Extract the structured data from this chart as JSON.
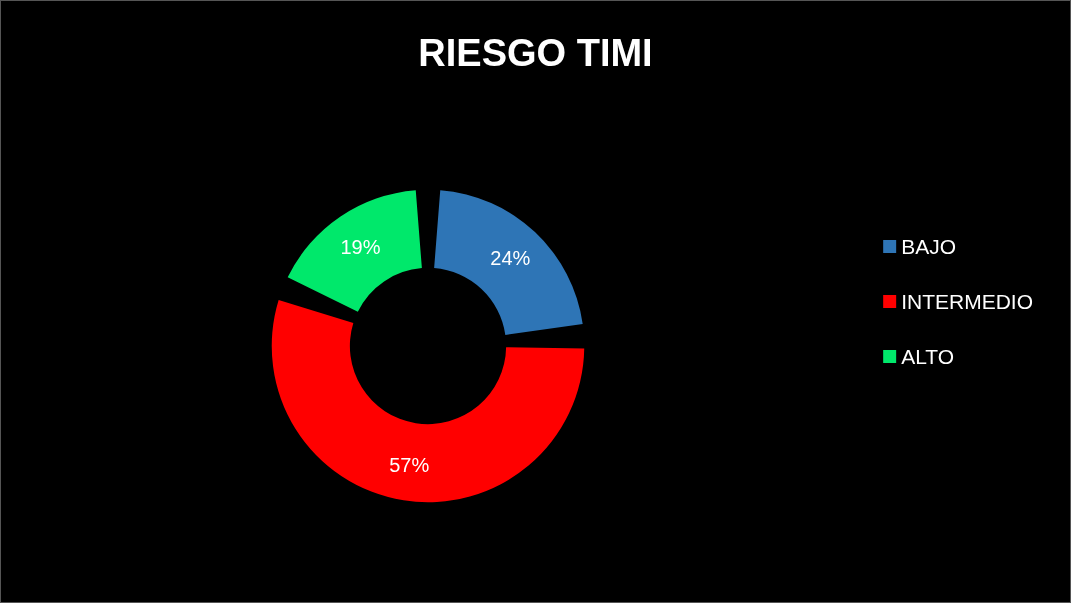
{
  "chart_data": {
    "type": "donut",
    "title": "RIESGO TIMI",
    "categories": [
      "BAJO",
      "INTERMEDIO",
      "ALTO"
    ],
    "values": [
      24,
      57,
      19
    ],
    "colors": [
      "#2e75b6",
      "#ff0000",
      "#00e86b"
    ],
    "value_labels": [
      "24%",
      "57%",
      "19%"
    ],
    "legend": "right"
  }
}
